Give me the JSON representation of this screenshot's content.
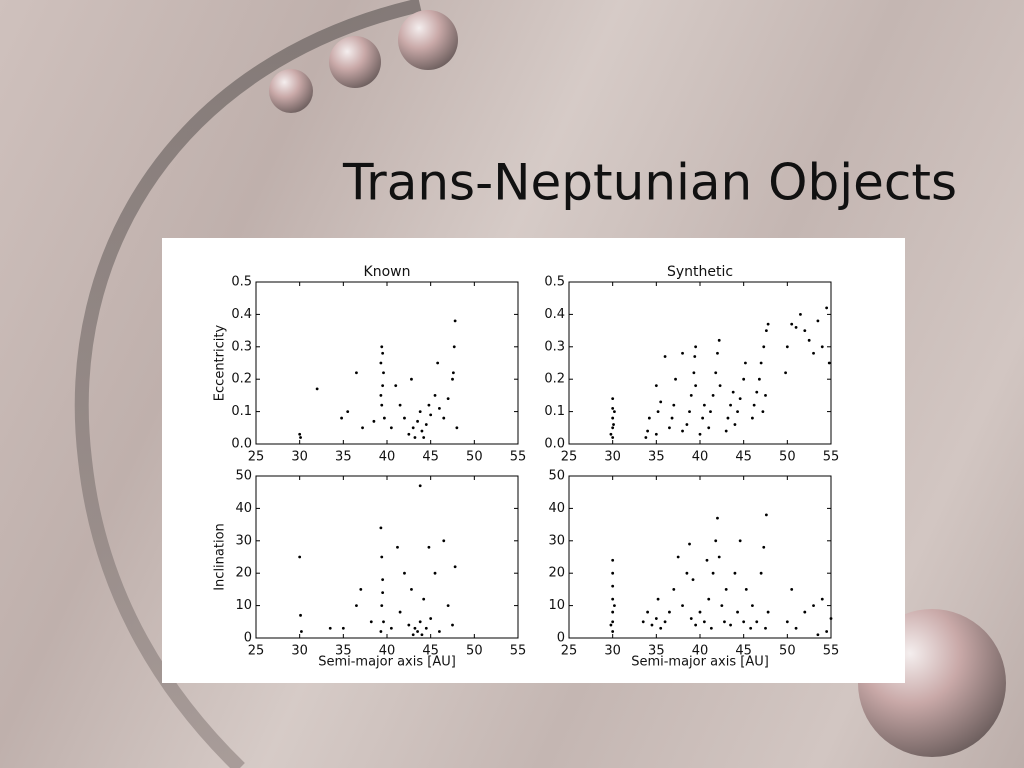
{
  "title": "Trans-Neptunian Objects",
  "chart_data": [
    {
      "type": "scatter",
      "title": "Known",
      "ylabel": "Eccentricity",
      "color": "#000000",
      "xlim": [
        25,
        55
      ],
      "xticks": [
        25,
        30,
        35,
        40,
        45,
        50,
        55
      ],
      "ylim": [
        0,
        0.5
      ],
      "yticks": [
        {
          "value": 0,
          "label": "0.0"
        },
        0.1,
        0.2,
        0.3,
        0.4,
        0.5
      ],
      "x": [
        30.1,
        30.0,
        32.0,
        34.8,
        35.5,
        36.5,
        37.2,
        38.5,
        39.3,
        39.4,
        39.5,
        39.4,
        39.6,
        39.5,
        39.3,
        39.7,
        40.5,
        41.5,
        42.0,
        42.5,
        43.0,
        43.2,
        43.5,
        43.8,
        44.0,
        44.2,
        44.5,
        44.8,
        45.0,
        45.5,
        46.0,
        46.5,
        47.0,
        47.5,
        47.7,
        47.8,
        47.6,
        48.0,
        42.8,
        41.0,
        45.8
      ],
      "y": [
        0.02,
        0.03,
        0.17,
        0.08,
        0.1,
        0.22,
        0.05,
        0.07,
        0.25,
        0.3,
        0.18,
        0.12,
        0.22,
        0.28,
        0.15,
        0.08,
        0.05,
        0.12,
        0.08,
        0.03,
        0.05,
        0.02,
        0.07,
        0.1,
        0.04,
        0.02,
        0.06,
        0.12,
        0.09,
        0.15,
        0.11,
        0.08,
        0.14,
        0.2,
        0.3,
        0.38,
        0.22,
        0.05,
        0.2,
        0.18,
        0.25
      ]
    },
    {
      "type": "scatter",
      "title": "Synthetic",
      "color": "#000000",
      "xlim": [
        25,
        55
      ],
      "xticks": [
        25,
        30,
        35,
        40,
        45,
        50,
        55
      ],
      "ylim": [
        0,
        0.5
      ],
      "yticks": [
        {
          "value": 0,
          "label": "0.0"
        },
        0.1,
        0.2,
        0.3,
        0.4,
        0.5
      ],
      "x": [
        30,
        30,
        30,
        30,
        30,
        29.8,
        30.2,
        30.1,
        33.8,
        34,
        34.2,
        35,
        35.2,
        35.5,
        35,
        36.5,
        36.8,
        37,
        37.2,
        38,
        38.5,
        38.8,
        39,
        39.3,
        39.4,
        39.5,
        39.5,
        40,
        40.3,
        40.5,
        41,
        41.2,
        41.5,
        41.8,
        42,
        42.2,
        42.3,
        43,
        43.2,
        43.5,
        43.8,
        44,
        44.3,
        44.6,
        45,
        45.2,
        46,
        46.2,
        46.5,
        46.8,
        47,
        47.3,
        47.6,
        47.8,
        47.5,
        47.2,
        50,
        50.5,
        51,
        51.5,
        52,
        52.5,
        53,
        53.5,
        54,
        54.5,
        54.8,
        49.8,
        36,
        38
      ],
      "y": [
        0.02,
        0.05,
        0.08,
        0.11,
        0.14,
        0.03,
        0.1,
        0.06,
        0.02,
        0.04,
        0.08,
        0.03,
        0.1,
        0.13,
        0.18,
        0.05,
        0.08,
        0.12,
        0.2,
        0.04,
        0.06,
        0.1,
        0.15,
        0.22,
        0.27,
        0.3,
        0.18,
        0.03,
        0.08,
        0.12,
        0.05,
        0.1,
        0.15,
        0.22,
        0.28,
        0.32,
        0.18,
        0.04,
        0.08,
        0.12,
        0.16,
        0.06,
        0.1,
        0.14,
        0.2,
        0.25,
        0.08,
        0.12,
        0.16,
        0.2,
        0.25,
        0.3,
        0.35,
        0.37,
        0.15,
        0.1,
        0.3,
        0.37,
        0.36,
        0.4,
        0.35,
        0.32,
        0.28,
        0.38,
        0.3,
        0.42,
        0.25,
        0.22,
        0.27,
        0.28
      ]
    },
    {
      "type": "scatter",
      "ylabel": "Inclination",
      "xlabel": "Semi-major axis [AU]",
      "color": "#000000",
      "xlim": [
        25,
        55
      ],
      "xticks": [
        25,
        30,
        35,
        40,
        45,
        50,
        55
      ],
      "ylim": [
        0,
        50
      ],
      "yticks": [
        0,
        10,
        20,
        30,
        40,
        50
      ],
      "x": [
        30.0,
        30.1,
        30.2,
        33.5,
        35.0,
        36.5,
        37.0,
        38.2,
        39.3,
        39.4,
        39.5,
        39.4,
        39.6,
        39.3,
        39.5,
        40.5,
        41.2,
        41.5,
        42.0,
        42.5,
        43.0,
        43.2,
        43.5,
        43.8,
        44.0,
        44.2,
        44.5,
        44.8,
        45.0,
        45.5,
        46.0,
        46.5,
        47.0,
        47.5,
        47.8,
        43.8,
        42.8
      ],
      "y": [
        25,
        7,
        2,
        3,
        3,
        10,
        15,
        5,
        34,
        25,
        18,
        10,
        5,
        2,
        14,
        3,
        28,
        8,
        20,
        4,
        1,
        3,
        2,
        5,
        1,
        12,
        3,
        28,
        6,
        20,
        2,
        30,
        10,
        4,
        22,
        47,
        15
      ]
    },
    {
      "type": "scatter",
      "xlabel": "Semi-major axis [AU]",
      "color": "#000000",
      "xlim": [
        25,
        55
      ],
      "xticks": [
        25,
        30,
        35,
        40,
        45,
        50,
        55
      ],
      "ylim": [
        0,
        50
      ],
      "yticks": [
        0,
        10,
        20,
        30,
        40,
        50
      ],
      "x": [
        30,
        30,
        30,
        30,
        30,
        30,
        30,
        29.8,
        30.2,
        33.5,
        34,
        34.5,
        35,
        35.2,
        35.5,
        36,
        36.5,
        37,
        37.5,
        38,
        38.5,
        38.8,
        39,
        39.2,
        39.5,
        40,
        40.5,
        40.8,
        41,
        41.3,
        41.5,
        41.8,
        42,
        42.2,
        42.5,
        42.8,
        43,
        43.5,
        44,
        44.3,
        44.6,
        45,
        45.3,
        45.8,
        46,
        46.5,
        47,
        47.3,
        47.6,
        47.8,
        47.5,
        50,
        50.5,
        51,
        52,
        53,
        54,
        54.5,
        55,
        53.5
      ],
      "y": [
        2,
        5,
        8,
        12,
        16,
        20,
        24,
        4,
        10,
        5,
        8,
        4,
        6,
        12,
        3,
        5,
        8,
        15,
        25,
        10,
        20,
        29,
        6,
        18,
        4,
        8,
        5,
        24,
        12,
        3,
        20,
        30,
        37,
        25,
        10,
        5,
        15,
        4,
        20,
        8,
        30,
        5,
        15,
        3,
        10,
        5,
        20,
        28,
        38,
        8,
        3,
        5,
        15,
        3,
        8,
        10,
        12,
        2,
        6,
        1
      ]
    }
  ]
}
